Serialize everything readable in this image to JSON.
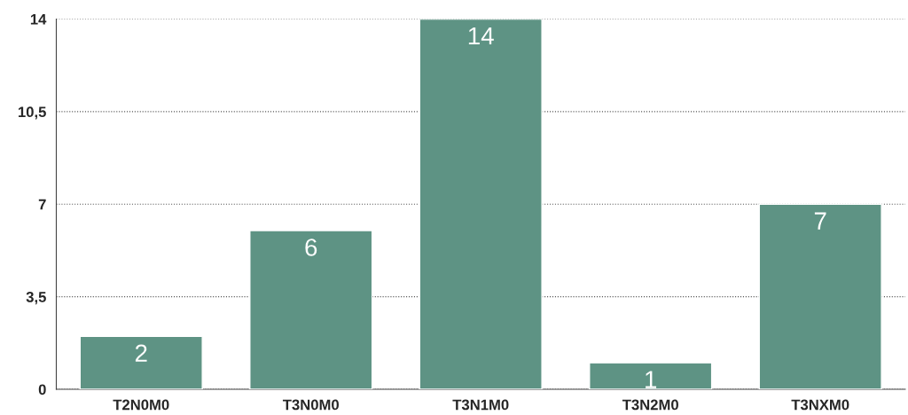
{
  "chart_data": {
    "type": "bar",
    "categories": [
      "T2N0M0",
      "T3N0M0",
      "T3N1M0",
      "T3N2M0",
      "T3NXM0"
    ],
    "values": [
      2,
      6,
      14,
      1,
      7
    ],
    "color": "#5e9384",
    "ylim": [
      0,
      14
    ],
    "yticks": [
      0,
      {
        "value": 3.5,
        "label": "3,5"
      },
      7,
      {
        "value": 10.5,
        "label": "10,5"
      },
      14
    ],
    "grid": "y",
    "data_labels": true
  }
}
